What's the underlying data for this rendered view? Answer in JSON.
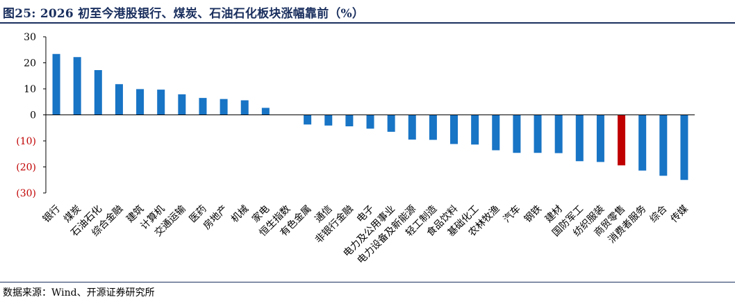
{
  "header": {
    "title": "图25:  2026 初至今港股银行、煤炭、石油石化板块涨幅靠前（%）"
  },
  "footer": {
    "source": "数据来源：Wind、开源证券研究所"
  },
  "colors": {
    "bar": "#1874c5",
    "highlight": "#c00000",
    "negative_tick": "#c00000",
    "title": "#1a2f5e"
  },
  "chart_data": {
    "type": "bar",
    "categories": [
      "银行",
      "煤炭",
      "石油石化",
      "综合金融",
      "建筑",
      "计算机",
      "交通运输",
      "医药",
      "房地产",
      "机械",
      "家电",
      "恒生指数",
      "有色金属",
      "通信",
      "非银行金融",
      "电子",
      "电力及公用事业",
      "电力设备及新能源",
      "轻工制造",
      "食品饮料",
      "基础化工",
      "农林牧渔",
      "汽车",
      "钢铁",
      "建材",
      "国防军工",
      "纺织服装",
      "商贸零售",
      "消费者服务",
      "综合",
      "传媒"
    ],
    "values": [
      23.4,
      22.2,
      17.2,
      11.8,
      9.9,
      9.7,
      7.9,
      6.5,
      6.1,
      5.6,
      2.7,
      0.0,
      -3.7,
      -4.1,
      -4.4,
      -5.3,
      -6.5,
      -9.5,
      -9.6,
      -11.2,
      -11.4,
      -13.6,
      -14.6,
      -14.6,
      -14.7,
      -17.8,
      -18.1,
      -19.4,
      -21.4,
      -23.4,
      -25.0
    ],
    "highlight_category": "商贸零售",
    "ylim": [
      -30,
      30
    ],
    "yticks": [
      30,
      20,
      10,
      0,
      -10,
      -20,
      -30
    ],
    "ytick_labels": [
      "30",
      "20",
      "10",
      "0",
      "(10)",
      "(20)",
      "(30)"
    ],
    "xlabel": "",
    "ylabel": "",
    "grid": false,
    "legend": "none"
  }
}
